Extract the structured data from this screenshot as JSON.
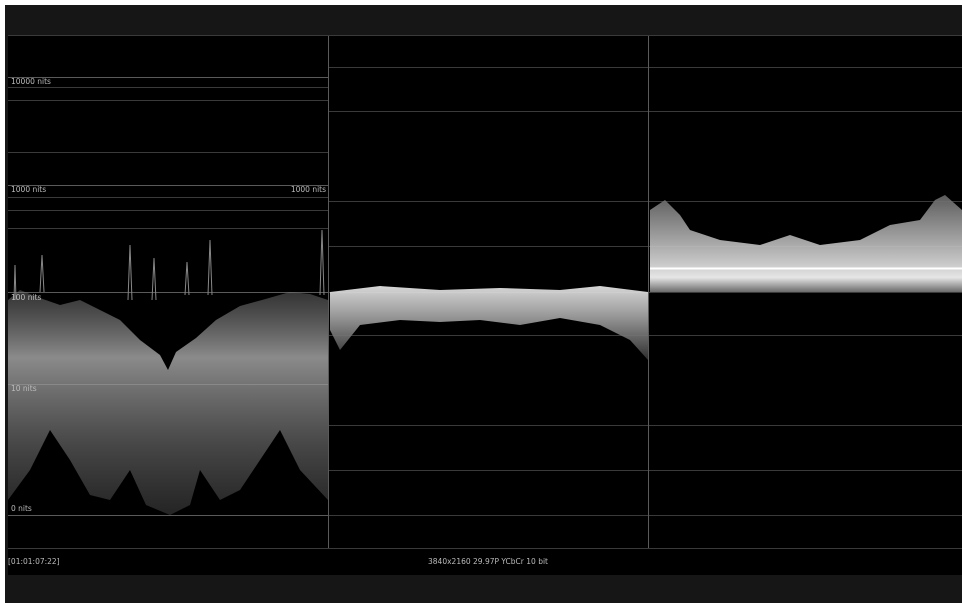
{
  "scale_labels": {
    "nits_10000": "10000 nits",
    "nits_1000": "1000 nits",
    "nits_1000_right": "1000 nits",
    "nits_100": "100 nits",
    "nits_10": "10 nits",
    "nits_0": "0 nits"
  },
  "status_bar": {
    "timecode": "[01:01:07:22]",
    "format": "3840x2160 29.97P YCbCr 10 bit"
  }
}
